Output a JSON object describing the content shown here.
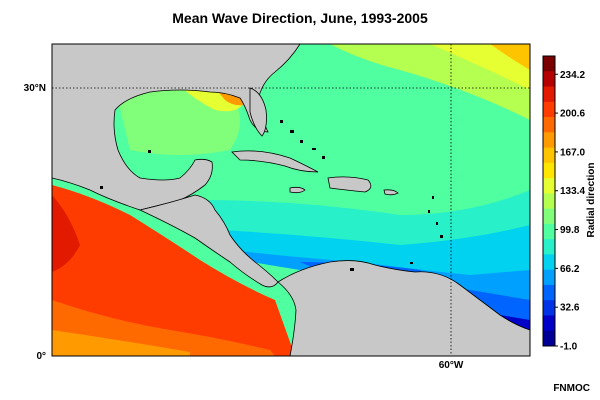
{
  "title": "Mean Wave Direction, June, 1993-2005",
  "credit": "FNMOC",
  "colors": {
    "land": "#c8c8c8",
    "coast": "#000000",
    "gridline": "#000000"
  },
  "map": {
    "lat_labels": [
      "30°N",
      "0°"
    ],
    "lon_labels": [
      "60°W"
    ]
  },
  "chart_data": {
    "type": "heatmap",
    "title": "Mean Wave Direction, June, 1993-2005",
    "variable": "Radial direction",
    "colorbar": {
      "label": "Radial direction",
      "min": -1.0,
      "max": 250,
      "tick_labels": [
        "234.2",
        "200.6",
        "167.0",
        "133.4",
        "99.8",
        "66.2",
        "32.6",
        "-1.0"
      ],
      "colors": [
        "#7a0000",
        "#b40000",
        "#e11a00",
        "#ff3c00",
        "#ff6a00",
        "#ff9a00",
        "#ffc400",
        "#ffe600",
        "#e6ff32",
        "#b4ff50",
        "#82ff7a",
        "#50ffa0",
        "#28f0c8",
        "#00d2f0",
        "#00a0ff",
        "#0064ff",
        "#0032e6",
        "#0000c8",
        "#000096"
      ]
    }
  }
}
